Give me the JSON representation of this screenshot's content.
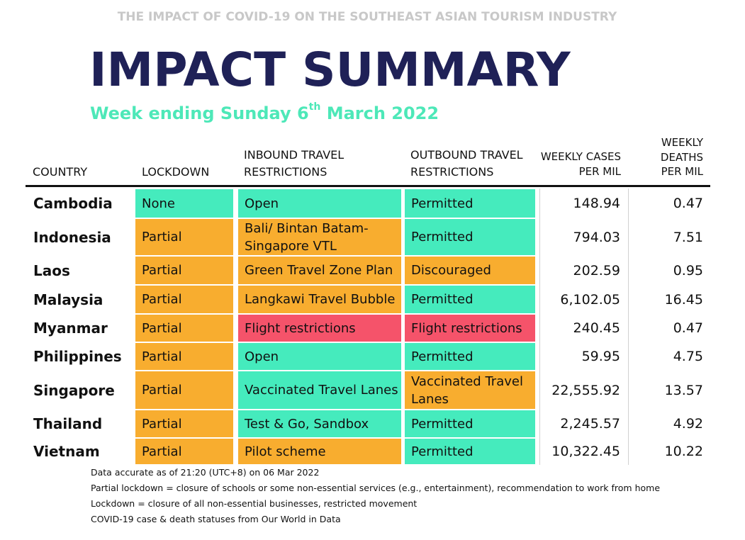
{
  "supertitle": "THE IMPACT OF COVID-19 ON THE SOUTHEAST ASIAN TOURISM INDUSTRY",
  "title": "IMPACT SUMMARY",
  "subtitle": {
    "prefix": "Week ending Sunday 6",
    "sup": "th",
    "suffix": " March 2022"
  },
  "headers": {
    "country": "COUNTRY",
    "lockdown": "LOCKDOWN",
    "inbound_1": "INBOUND TRAVEL",
    "inbound_2": "RESTRICTIONS",
    "outbound_1": "OUTBOUND TRAVEL",
    "outbound_2": "RESTRICTIONS",
    "cases_1": "WEEKLY CASES",
    "cases_2": "PER MIL",
    "deaths_1": "WEEKLY",
    "deaths_2": "DEATHS",
    "deaths_3": "PER MIL"
  },
  "colors": {
    "open": "#45ebbd",
    "partial": "#f8ad2f",
    "restricted": "#f5536a",
    "title": "#1f2157",
    "subtitle": "#4de8b8"
  },
  "rows": [
    {
      "country": "Cambodia",
      "lockdown": "None",
      "lockdown_status": "open",
      "inbound": "Open",
      "inbound_status": "open",
      "outbound": "Permitted",
      "outbound_status": "open",
      "cases": "148.94",
      "deaths": "0.47"
    },
    {
      "country": "Indonesia",
      "lockdown": "Partial",
      "lockdown_status": "partial",
      "inbound": "Bali/ Bintan Batam-Singapore VTL",
      "inbound_status": "partial",
      "outbound": "Permitted",
      "outbound_status": "open",
      "cases": "794.03",
      "deaths": "7.51"
    },
    {
      "country": "Laos",
      "lockdown": "Partial",
      "lockdown_status": "partial",
      "inbound": "Green Travel Zone Plan",
      "inbound_status": "partial",
      "outbound": "Discouraged",
      "outbound_status": "partial",
      "cases": "202.59",
      "deaths": "0.95"
    },
    {
      "country": "Malaysia",
      "lockdown": "Partial",
      "lockdown_status": "partial",
      "inbound": "Langkawi Travel Bubble",
      "inbound_status": "partial",
      "outbound": "Permitted",
      "outbound_status": "open",
      "cases": "6,102.05",
      "deaths": "16.45"
    },
    {
      "country": "Myanmar",
      "lockdown": "Partial",
      "lockdown_status": "partial",
      "inbound": "Flight restrictions",
      "inbound_status": "restricted",
      "outbound": "Flight restrictions",
      "outbound_status": "restricted",
      "cases": "240.45",
      "deaths": "0.47"
    },
    {
      "country": "Philippines",
      "lockdown": "Partial",
      "lockdown_status": "partial",
      "inbound": "Open",
      "inbound_status": "open",
      "outbound": "Permitted",
      "outbound_status": "open",
      "cases": "59.95",
      "deaths": "4.75"
    },
    {
      "country": "Singapore",
      "lockdown": "Partial",
      "lockdown_status": "partial",
      "inbound": "Vaccinated Travel Lanes",
      "inbound_status": "open",
      "outbound": "Vaccinated Travel Lanes",
      "outbound_status": "partial",
      "cases": "22,555.92",
      "deaths": "13.57"
    },
    {
      "country": "Thailand",
      "lockdown": "Partial",
      "lockdown_status": "partial",
      "inbound": "Test & Go, Sandbox",
      "inbound_status": "open",
      "outbound": "Permitted",
      "outbound_status": "open",
      "cases": "2,245.57",
      "deaths": "4.92"
    },
    {
      "country": "Vietnam",
      "lockdown": "Partial",
      "lockdown_status": "partial",
      "inbound": "Pilot scheme",
      "inbound_status": "partial",
      "outbound": "Permitted",
      "outbound_status": "open",
      "cases": "10,322.45",
      "deaths": "10.22"
    }
  ],
  "notes": [
    "Data accurate as of 21:20 (UTC+8) on 06 Mar 2022",
    "Partial lockdown = closure of schools or some non-essential services (e.g., entertainment), recommendation to work from home",
    "Lockdown = closure of all non-essential businesses, restricted movement",
    "COVID-19 case & death statuses from Our World in Data"
  ]
}
